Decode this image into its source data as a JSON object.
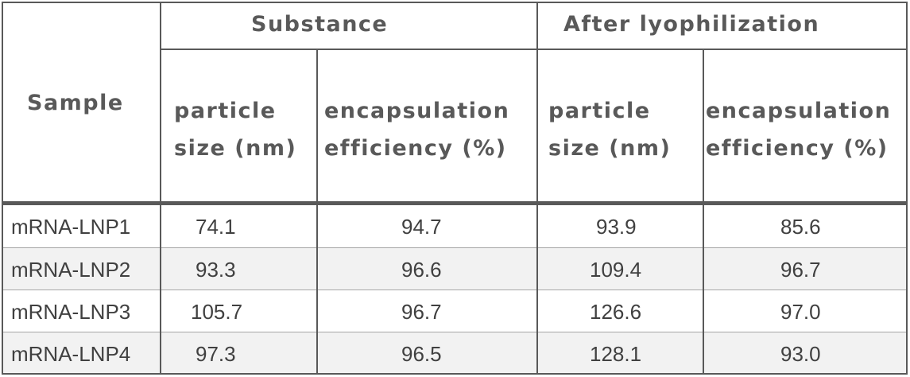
{
  "table": {
    "sample_header": "Sample",
    "groups": [
      "Substance",
      "After lyophilization"
    ],
    "subheaders": [
      [
        "particle",
        "size (nm)"
      ],
      [
        "encapsulation",
        "efficiency (%)"
      ],
      [
        "particle",
        "size (nm)"
      ],
      [
        "encapsulation",
        "efficiency (%)"
      ]
    ],
    "rows": [
      [
        "mRNA-LNP1",
        "74.1",
        "94.7",
        "93.9",
        "85.6"
      ],
      [
        "mRNA-LNP2",
        "93.3",
        "96.6",
        "109.4",
        "96.7"
      ],
      [
        "mRNA-LNP3",
        "105.7",
        "96.7",
        "126.6",
        "97.0"
      ],
      [
        "mRNA-LNP4",
        "97.3",
        "96.5",
        "128.1",
        "93.0"
      ]
    ]
  }
}
